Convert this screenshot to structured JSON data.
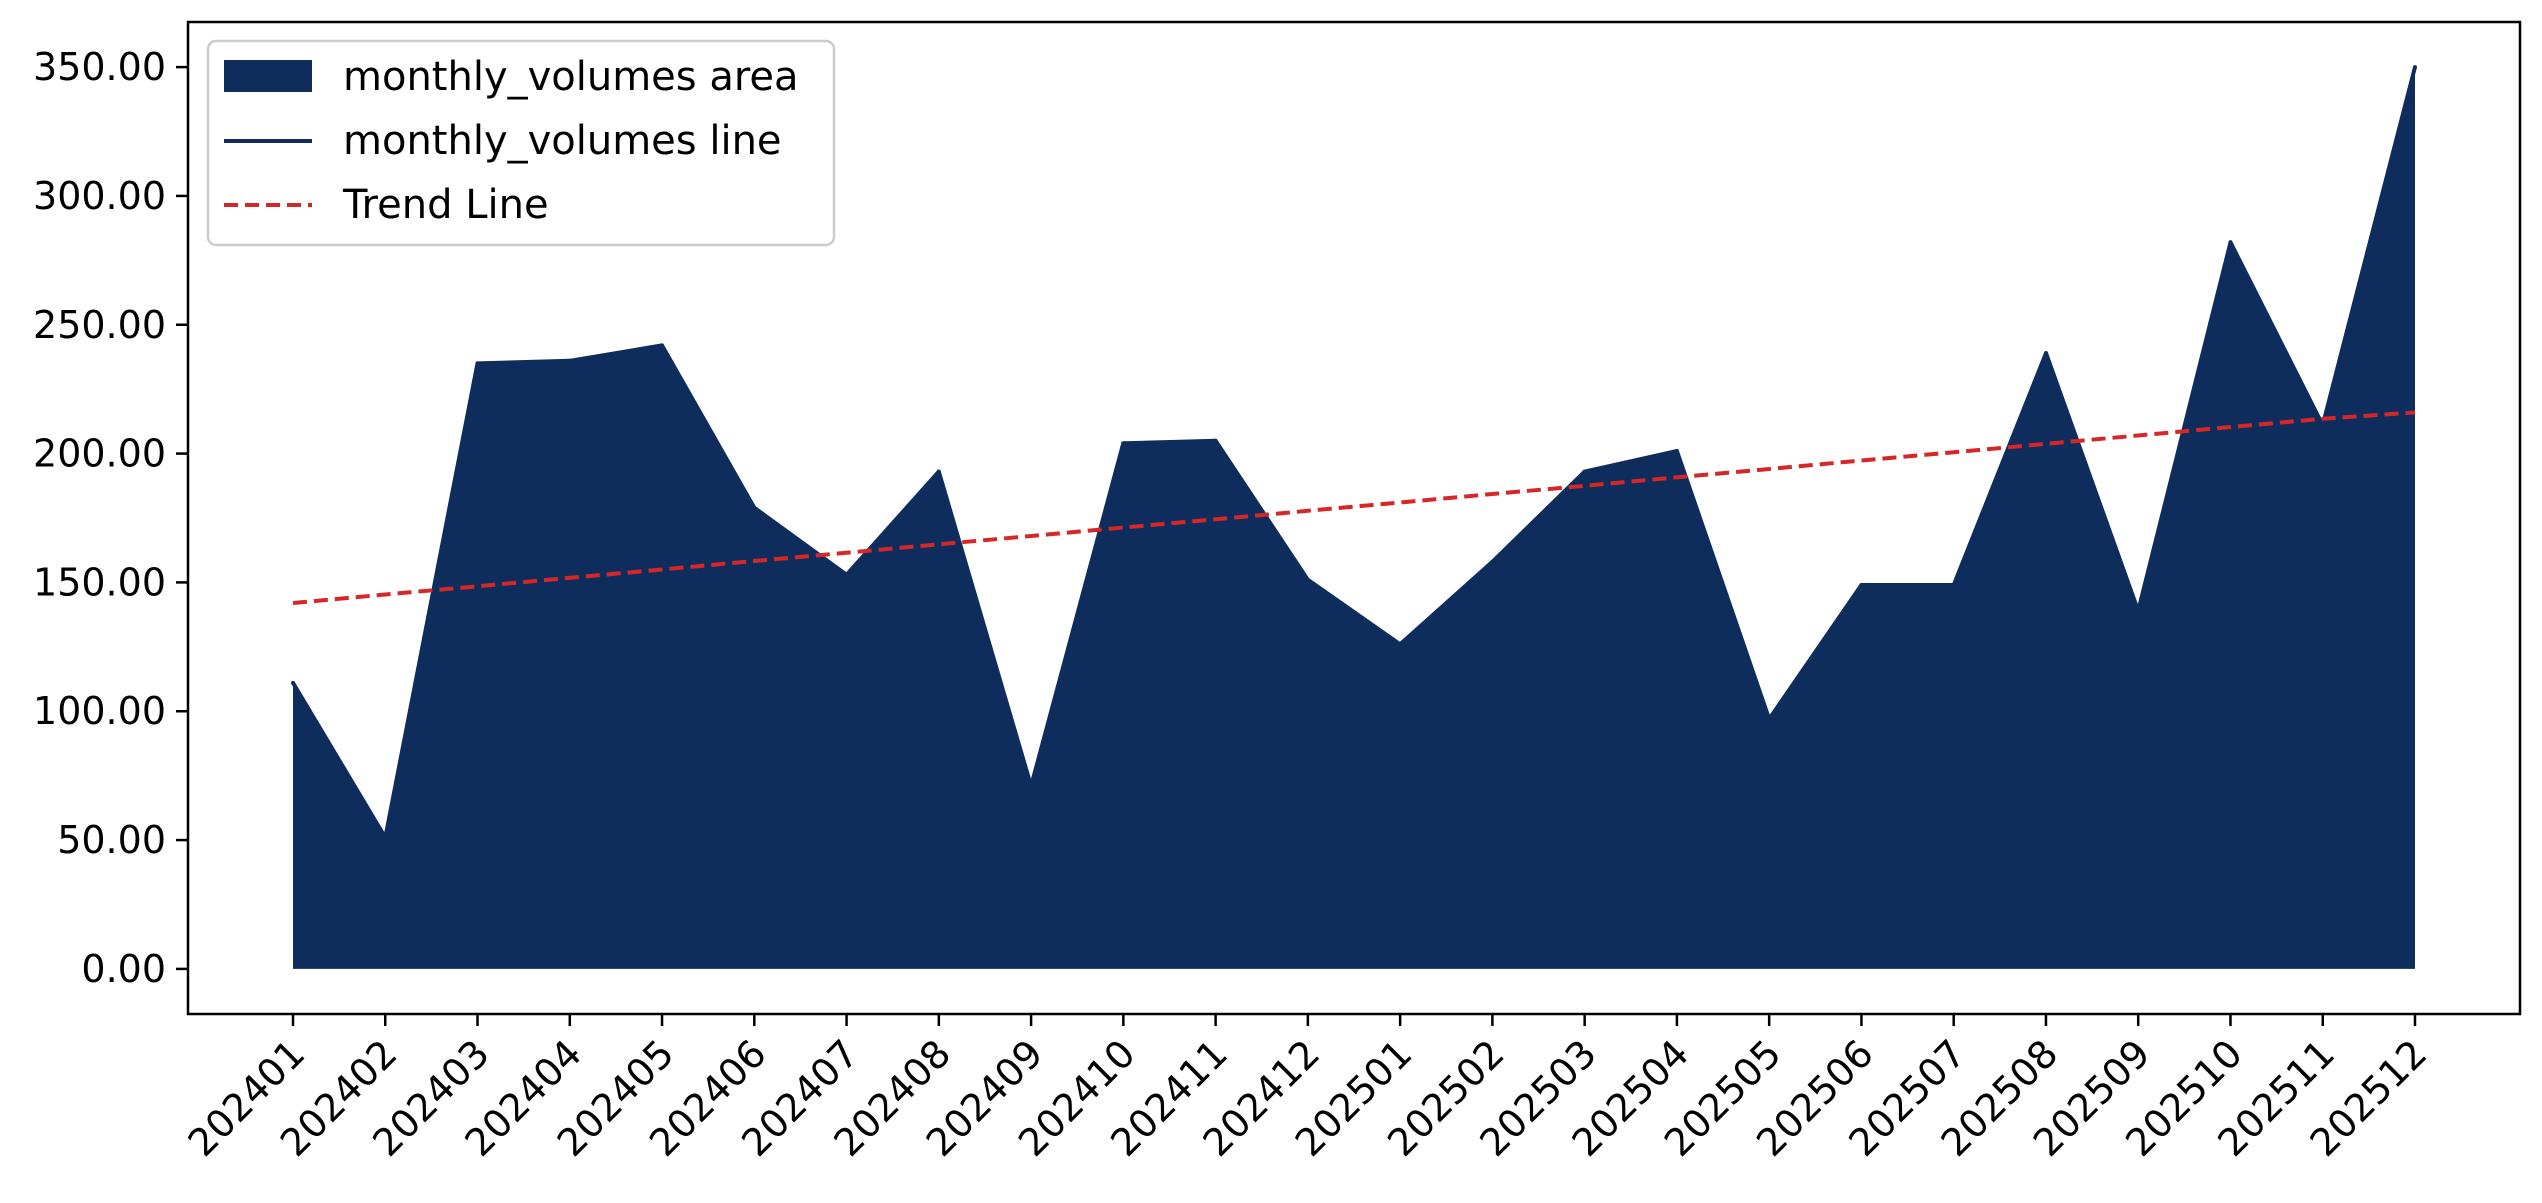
{
  "chart_data": {
    "type": "area",
    "title": "",
    "xlabel": "",
    "ylabel": "",
    "categories": [
      "202401",
      "202402",
      "202403",
      "202404",
      "202405",
      "202406",
      "202407",
      "202408",
      "202409",
      "202410",
      "202411",
      "202412",
      "202501",
      "202502",
      "202503",
      "202504",
      "202505",
      "202506",
      "202507",
      "202508",
      "202509",
      "202510",
      "202511",
      "202512"
    ],
    "series": [
      {
        "name": "monthly_volumes area",
        "kind": "area",
        "color": "#0f2d5c",
        "values": [
          111,
          51,
          235,
          236,
          242,
          179,
          153,
          193,
          71,
          204,
          205,
          151,
          126,
          158,
          193,
          201,
          97,
          149,
          149,
          239,
          139,
          282,
          211,
          350
        ]
      },
      {
        "name": "monthly_volumes line",
        "kind": "line",
        "color": "#0f2d5c",
        "values": [
          111,
          51,
          235,
          236,
          242,
          179,
          153,
          193,
          71,
          204,
          205,
          151,
          126,
          158,
          193,
          201,
          97,
          149,
          149,
          239,
          139,
          282,
          211,
          350
        ]
      },
      {
        "name": "Trend Line",
        "kind": "trend",
        "color": "#d62728",
        "dash": "dashed",
        "values": [
          142,
          145.3,
          148.5,
          151.8,
          155.0,
          158.3,
          161.5,
          164.8,
          168.0,
          171.3,
          174.5,
          177.8,
          181.0,
          184.3,
          187.5,
          190.8,
          194.0,
          197.3,
          200.5,
          203.8,
          207.0,
          210.3,
          213.5,
          216
        ]
      }
    ],
    "yticks": [
      "0.00",
      "50.00",
      "100.00",
      "150.00",
      "200.00",
      "250.00",
      "300.00",
      "350.00"
    ],
    "ylim": [
      -17.5,
      367.5
    ],
    "grid": false,
    "legend": {
      "position": "top-left",
      "entries": [
        "monthly_volumes area",
        "monthly_volumes line",
        "Trend Line"
      ]
    }
  }
}
